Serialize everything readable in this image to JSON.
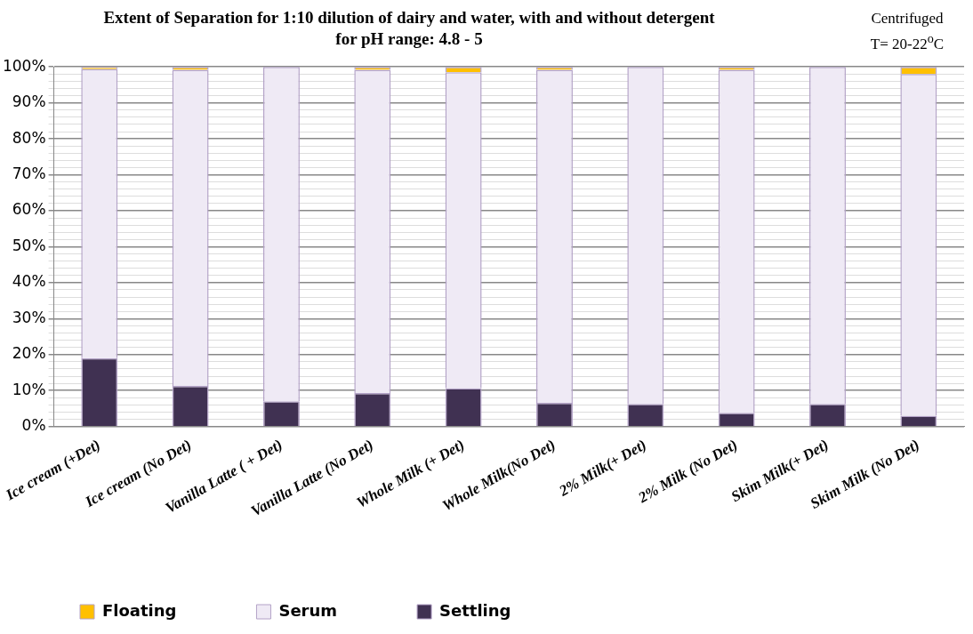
{
  "chart_data": {
    "type": "bar",
    "title": "Extent of Separation for 1:10 dilution of dairy and water, with and without detergent for pH range:  4.8 - 5",
    "annotations": [
      "Centrifuged",
      "T= 20-22$^{o}$C"
    ],
    "categories": [
      "Ice cream (+Det)",
      "Ice cream (No Det)",
      "Vanilla Latte ( + Det)",
      "Vanilla Latte (No Det)",
      "Whole Milk (+ Det)",
      "Whole Milk(No Det)",
      "2% Milk(+ Det)",
      "2% Milk (No Det)",
      "Skim Milk(+ Det)",
      "Skim Milk (No Det)"
    ],
    "stacked": true,
    "series": [
      {
        "name": "Settling",
        "color": "#403152",
        "values": [
          19,
          11.3,
          7,
          9.3,
          10.7,
          6.6,
          6.3,
          3.8,
          6.3,
          3
        ]
      },
      {
        "name": "Serum",
        "color": "#efeaf5",
        "values": [
          80.4,
          87.9,
          93,
          89.9,
          87.8,
          92.6,
          93.7,
          95.4,
          93.7,
          95
        ]
      },
      {
        "name": "Floating",
        "color": "#ffc000",
        "values": [
          0.6,
          0.8,
          0,
          0.8,
          1.5,
          0.8,
          0,
          0.8,
          0,
          2
        ]
      }
    ],
    "ylim": [
      0,
      100
    ],
    "yticks": [
      {
        "value": 0,
        "label": "0%"
      },
      {
        "value": 2,
        "label": null
      },
      {
        "value": 4,
        "label": null
      },
      {
        "value": 6,
        "label": null
      },
      {
        "value": 8,
        "label": null
      },
      {
        "value": 10,
        "label": "10%"
      },
      {
        "value": 12,
        "label": null
      },
      {
        "value": 14,
        "label": null
      },
      {
        "value": 16,
        "label": null
      },
      {
        "value": 18,
        "label": null
      },
      {
        "value": 20,
        "label": "20%"
      },
      {
        "value": 22,
        "label": null
      },
      {
        "value": 24,
        "label": null
      },
      {
        "value": 26,
        "label": null
      },
      {
        "value": 28,
        "label": null
      },
      {
        "value": 30,
        "label": "30%"
      },
      {
        "value": 32,
        "label": null
      },
      {
        "value": 34,
        "label": null
      },
      {
        "value": 36,
        "label": null
      },
      {
        "value": 38,
        "label": null
      },
      {
        "value": 40,
        "label": "40%"
      },
      {
        "value": 42,
        "label": null
      },
      {
        "value": 44,
        "label": null
      },
      {
        "value": 46,
        "label": null
      },
      {
        "value": 48,
        "label": null
      },
      {
        "value": 50,
        "label": "50%"
      },
      {
        "value": 52,
        "label": null
      },
      {
        "value": 54,
        "label": null
      },
      {
        "value": 56,
        "label": null
      },
      {
        "value": 58,
        "label": null
      },
      {
        "value": 60,
        "label": "60%"
      },
      {
        "value": 62,
        "label": null
      },
      {
        "value": 64,
        "label": null
      },
      {
        "value": 66,
        "label": null
      },
      {
        "value": 68,
        "label": null
      },
      {
        "value": 70,
        "label": "70%"
      },
      {
        "value": 72,
        "label": null
      },
      {
        "value": 74,
        "label": null
      },
      {
        "value": 76,
        "label": null
      },
      {
        "value": 78,
        "label": null
      },
      {
        "value": 80,
        "label": "80%"
      },
      {
        "value": 82,
        "label": null
      },
      {
        "value": 84,
        "label": null
      },
      {
        "value": 86,
        "label": null
      },
      {
        "value": 88,
        "label": null
      },
      {
        "value": 90,
        "label": "90%"
      },
      {
        "value": 92,
        "label": null
      },
      {
        "value": 94,
        "label": null
      },
      {
        "value": 96,
        "label": null
      },
      {
        "value": 98,
        "label": null
      },
      {
        "value": 100,
        "label": "100%"
      }
    ],
    "grid": "y",
    "legend": "bottom"
  }
}
